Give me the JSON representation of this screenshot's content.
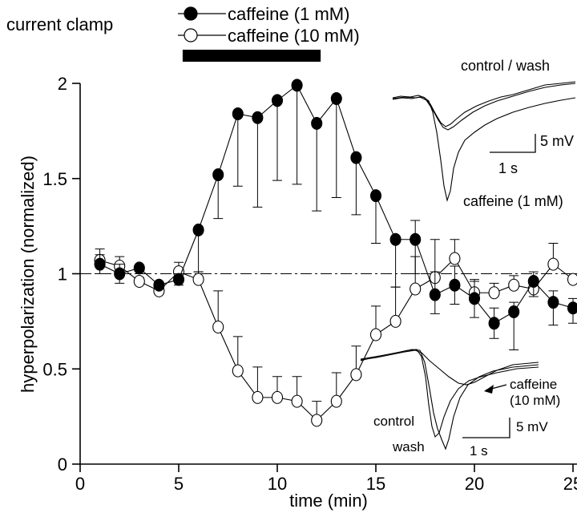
{
  "figure": {
    "panel_label": "current clamp",
    "drug_bar_label": "",
    "inset_top": {
      "top_label": "control / wash",
      "drug_label": "caffeine (1 mM)",
      "scale_v": "5 mV",
      "scale_t": "1 s"
    },
    "inset_bottom": {
      "drug_label_line1": "caffeine",
      "drug_label_line2": "(10 mM)",
      "control_label": "control",
      "wash_label": "wash",
      "scale_v": "5 mV",
      "scale_t": "1 s"
    }
  },
  "chart_data": {
    "type": "line",
    "title": "",
    "xlabel": "time (min)",
    "ylabel": "hyperpolarization (normalized)",
    "xlim": [
      0,
      26
    ],
    "ylim": [
      0,
      2
    ],
    "xticks": [
      0,
      5,
      10,
      15,
      20,
      25
    ],
    "xtick_labels": [
      "0",
      "5",
      "10",
      "15",
      "20",
      "25"
    ],
    "yticks": [
      0,
      0.5,
      1,
      1.5,
      2
    ],
    "ytick_labels": [
      "0",
      "0.5",
      "1",
      "1.5",
      "2"
    ],
    "reference_line": 1,
    "drug_application": [
      5.2,
      12.2
    ],
    "legend_position": "top",
    "series": [
      {
        "name": "caffeine (1 mM)",
        "marker": "filled-circle",
        "x": [
          1,
          2,
          3,
          4,
          5,
          6,
          7,
          8,
          9,
          10,
          11,
          12,
          13,
          14,
          15,
          16,
          17,
          18,
          19,
          20,
          21,
          22,
          23,
          24,
          25
        ],
        "values": [
          1.05,
          1.0,
          1.03,
          0.94,
          0.97,
          1.23,
          1.52,
          1.84,
          1.82,
          1.91,
          1.99,
          1.79,
          1.92,
          1.61,
          1.41,
          1.18,
          1.18,
          0.89,
          0.94,
          0.87,
          0.74,
          0.8,
          0.96,
          0.85,
          0.82
        ],
        "error_low": [
          0.05,
          0.05,
          0,
          0,
          0.03,
          0.22,
          0.23,
          0.38,
          0.47,
          0.42,
          0.52,
          0.46,
          0.52,
          0.3,
          0.25,
          0.25,
          0.18,
          0.1,
          0.1,
          0.1,
          0.08,
          0.2,
          0.08,
          0.12,
          0.08
        ],
        "error_high": [
          0.05,
          0.05,
          0,
          0,
          0.03,
          0,
          0,
          0,
          0,
          0,
          0,
          0,
          0,
          0,
          0,
          0,
          0.1,
          0.12,
          0.1,
          0.1,
          0.08,
          0.05,
          0.05,
          0.06,
          0.05
        ]
      },
      {
        "name": "caffeine (10 mM)",
        "marker": "open-circle",
        "x": [
          1,
          2,
          3,
          4,
          5,
          6,
          7,
          8,
          9,
          10,
          11,
          12,
          13,
          14,
          15,
          16,
          17,
          18,
          19,
          20,
          21,
          22,
          23,
          24,
          25
        ],
        "values": [
          1.07,
          1.04,
          0.96,
          0.91,
          1.01,
          0.97,
          0.72,
          0.49,
          0.35,
          0.35,
          0.33,
          0.23,
          0.33,
          0.47,
          0.68,
          0.75,
          0.92,
          0.98,
          1.08,
          0.9,
          0.9,
          0.94,
          0.92,
          1.05,
          0.97
        ],
        "error_low": [
          0,
          0,
          0,
          0,
          0,
          0,
          0,
          0,
          0,
          0,
          0,
          0,
          0,
          0,
          0,
          0,
          0,
          0,
          0,
          0,
          0,
          0,
          0,
          0,
          0
        ],
        "error_high": [
          0.06,
          0.05,
          0.02,
          0.03,
          0.05,
          0.04,
          0.19,
          0.18,
          0.16,
          0.11,
          0.13,
          0.1,
          0.15,
          0.15,
          0.15,
          0.18,
          0.17,
          0.2,
          0.1,
          0.06,
          0.05,
          0.05,
          0.05,
          0.11,
          0.03
        ]
      }
    ]
  }
}
